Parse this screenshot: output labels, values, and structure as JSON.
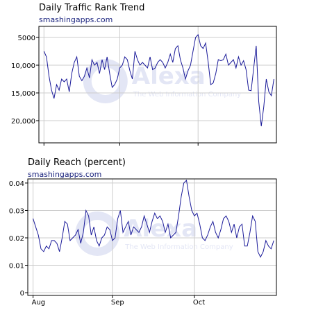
{
  "charts": [
    {
      "title": "Daily Traffic Rank Trend",
      "subtitle": "smashingapps.com",
      "watermark": {
        "brand": "Alexa",
        "tagline": "The Web Information Company"
      },
      "chart_data": {
        "type": "line",
        "title": "Daily Traffic Rank Trend",
        "xlabel": "",
        "ylabel": "",
        "ylim": [
          3000,
          24000
        ],
        "y_axis_inverted": true,
        "y_ticks": [
          5000,
          10000,
          15000,
          20000
        ],
        "y_tick_labels": [
          "5000",
          "10,000",
          "15,000",
          "20,000"
        ],
        "x_ticks": [
          0,
          30,
          61
        ],
        "x_tick_labels": [
          "Aug",
          "Sep",
          "Oct"
        ],
        "xlim": [
          -2,
          92
        ],
        "grid": true,
        "line_color": "#1a1a99",
        "x": [
          0,
          1,
          2,
          3,
          4,
          5,
          6,
          7,
          8,
          9,
          10,
          11,
          12,
          13,
          14,
          15,
          16,
          17,
          18,
          19,
          20,
          21,
          22,
          23,
          24,
          25,
          26,
          27,
          28,
          29,
          30,
          31,
          32,
          33,
          34,
          35,
          36,
          37,
          38,
          39,
          40,
          41,
          42,
          43,
          44,
          45,
          46,
          47,
          48,
          49,
          50,
          51,
          52,
          53,
          54,
          55,
          56,
          57,
          58,
          59,
          60,
          61,
          62,
          63,
          64,
          65,
          66,
          67,
          68,
          69,
          70,
          71,
          72,
          73,
          74,
          75,
          76,
          77,
          78,
          79,
          80,
          81,
          82,
          83,
          84,
          85,
          86,
          87,
          88,
          89,
          90,
          91
        ],
        "values": [
          7500,
          8500,
          12000,
          14500,
          16000,
          13500,
          14500,
          12500,
          13000,
          12500,
          14800,
          11500,
          9500,
          8500,
          12000,
          12800,
          12000,
          10500,
          12300,
          9000,
          10000,
          9500,
          11500,
          9000,
          10800,
          8500,
          11500,
          14000,
          13500,
          12500,
          10500,
          10000,
          8500,
          9000,
          11000,
          12500,
          7500,
          9000,
          10000,
          9500,
          10000,
          10500,
          8500,
          10800,
          10500,
          9500,
          9000,
          9500,
          10500,
          9500,
          8000,
          9500,
          7000,
          6500,
          9000,
          10500,
          12500,
          11000,
          10000,
          7500,
          5000,
          4500,
          6500,
          7000,
          6000,
          9500,
          13500,
          13200,
          11500,
          9000,
          9200,
          9000,
          8000,
          10000,
          9500,
          9000,
          10500,
          8500,
          10000,
          9200,
          10800,
          14500,
          14600,
          10500,
          6500,
          16500,
          21000,
          17500,
          12500,
          14800,
          15500,
          12500
        ]
      }
    },
    {
      "title": "Daily Reach (percent)",
      "subtitle": "smashingapps.com",
      "watermark": {
        "brand": "Alexa",
        "tagline": "The Web Information Company"
      },
      "chart_data": {
        "type": "line",
        "title": "Daily Reach (percent)",
        "xlabel": "",
        "ylabel": "",
        "ylim": [
          -0.001,
          0.0415
        ],
        "y_ticks": [
          0,
          0.01,
          0.02,
          0.03,
          0.04
        ],
        "y_tick_labels": [
          "0",
          "0.01",
          "0.02",
          "0.03",
          "0.04"
        ],
        "x_ticks": [
          0,
          30,
          61
        ],
        "x_tick_labels": [
          "Aug",
          "Sep",
          "Oct"
        ],
        "xlim": [
          -2,
          92
        ],
        "grid": true,
        "line_color": "#1a1a99",
        "x": [
          0,
          1,
          2,
          3,
          4,
          5,
          6,
          7,
          8,
          9,
          10,
          11,
          12,
          13,
          14,
          15,
          16,
          17,
          18,
          19,
          20,
          21,
          22,
          23,
          24,
          25,
          26,
          27,
          28,
          29,
          30,
          31,
          32,
          33,
          34,
          35,
          36,
          37,
          38,
          39,
          40,
          41,
          42,
          43,
          44,
          45,
          46,
          47,
          48,
          49,
          50,
          51,
          52,
          53,
          54,
          55,
          56,
          57,
          58,
          59,
          60,
          61,
          62,
          63,
          64,
          65,
          66,
          67,
          68,
          69,
          70,
          71,
          72,
          73,
          74,
          75,
          76,
          77,
          78,
          79,
          80,
          81,
          82,
          83,
          84,
          85,
          86,
          87,
          88,
          89,
          90,
          91
        ],
        "values": [
          0.027,
          0.024,
          0.021,
          0.016,
          0.015,
          0.017,
          0.016,
          0.019,
          0.019,
          0.018,
          0.015,
          0.02,
          0.026,
          0.025,
          0.019,
          0.02,
          0.021,
          0.023,
          0.018,
          0.022,
          0.03,
          0.028,
          0.021,
          0.024,
          0.019,
          0.017,
          0.02,
          0.021,
          0.024,
          0.023,
          0.019,
          0.02,
          0.027,
          0.03,
          0.022,
          0.024,
          0.026,
          0.021,
          0.024,
          0.023,
          0.022,
          0.024,
          0.028,
          0.025,
          0.022,
          0.026,
          0.029,
          0.027,
          0.028,
          0.026,
          0.022,
          0.025,
          0.02,
          0.021,
          0.022,
          0.028,
          0.035,
          0.04,
          0.041,
          0.035,
          0.03,
          0.028,
          0.029,
          0.025,
          0.02,
          0.019,
          0.021,
          0.024,
          0.026,
          0.022,
          0.02,
          0.023,
          0.027,
          0.028,
          0.026,
          0.022,
          0.025,
          0.02,
          0.024,
          0.025,
          0.017,
          0.017,
          0.022,
          0.028,
          0.026,
          0.015,
          0.013,
          0.015,
          0.019,
          0.017,
          0.016,
          0.019
        ]
      }
    }
  ]
}
